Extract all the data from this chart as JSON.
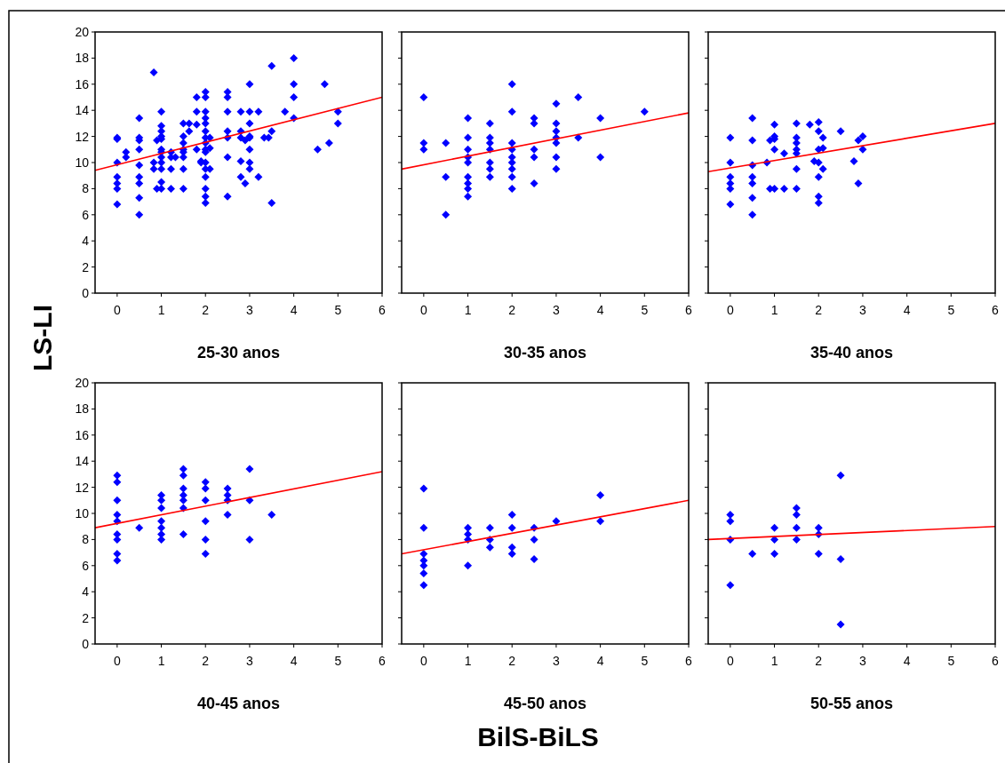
{
  "chart_data": [
    {
      "type": "scatter",
      "xlabel": "25-30 anos",
      "ylabel": "LS-LI",
      "xlim": [
        -0.5,
        6
      ],
      "xticks": [
        0,
        1,
        2,
        3,
        4,
        5,
        6
      ],
      "ylim": [
        0,
        20
      ],
      "yticks": [
        0,
        2,
        4,
        6,
        8,
        10,
        12,
        14,
        16,
        18,
        20
      ],
      "series": [
        {
          "color": "#0000ff",
          "marker": "diamond",
          "x": [
            0,
            0,
            0,
            0,
            0,
            0,
            0,
            0.2,
            0.2,
            0.5,
            0.5,
            0.5,
            0.5,
            0.5,
            0.5,
            0.5,
            0.5,
            0.5,
            0.83,
            0.83,
            0.83,
            0.9,
            0.9,
            1,
            1,
            1,
            1,
            1,
            1,
            1,
            1,
            1,
            1,
            1,
            1,
            1.22,
            1.22,
            1.22,
            1.22,
            1.32,
            1.5,
            1.5,
            1.5,
            1.5,
            1.5,
            1.5,
            1.5,
            1.5,
            1.63,
            1.63,
            1.8,
            1.8,
            1.8,
            1.8,
            1.9,
            1.9,
            2,
            2,
            2,
            2,
            2,
            2,
            2,
            2,
            2,
            2,
            2,
            2,
            2,
            2,
            2,
            2,
            2.1,
            2.1,
            2.1,
            2.5,
            2.5,
            2.5,
            2.5,
            2.5,
            2.5,
            2.5,
            2.8,
            2.8,
            2.8,
            2.8,
            2.8,
            2.9,
            2.9,
            3,
            3,
            3,
            3,
            3,
            3,
            3,
            3,
            3.2,
            3.2,
            3.33,
            3.43,
            3.5,
            3.5,
            3.5,
            3.8,
            4,
            4,
            4,
            4,
            4.54,
            4.7,
            4.8,
            5,
            5
          ],
          "values": [
            11.9,
            11.8,
            10,
            8.9,
            8.4,
            8,
            6.8,
            10.8,
            10.4,
            13.4,
            11.9,
            11.7,
            11,
            9.8,
            8.9,
            8.4,
            7.3,
            6,
            16.9,
            10,
            9.5,
            11.7,
            8,
            13.9,
            12.8,
            12.4,
            12,
            11.8,
            11,
            10.8,
            10.4,
            10,
            9.5,
            8.5,
            8,
            10.8,
            10.4,
            9.5,
            8,
            10.4,
            13,
            12,
            11.5,
            11,
            10.8,
            10.4,
            9.5,
            8,
            13,
            12.4,
            15,
            13.9,
            12.9,
            11,
            10.1,
            10,
            15.4,
            15,
            13.9,
            13.4,
            13,
            12.4,
            11.9,
            11.5,
            11,
            10.8,
            10,
            9.5,
            8.9,
            8,
            7.4,
            6.9,
            11.9,
            11.1,
            9.5,
            15.4,
            15,
            13.9,
            12.4,
            11.9,
            10.4,
            7.4,
            13.9,
            12.4,
            11.9,
            10.1,
            8.9,
            11.7,
            8.4,
            16,
            13.9,
            13,
            12,
            11.9,
            11,
            10,
            9.5,
            13.9,
            8.9,
            11.9,
            11.9,
            17.4,
            12.4,
            6.9,
            13.9,
            18,
            16,
            15,
            13.4,
            11,
            16,
            11.5,
            13.9,
            13
          ]
        },
        {
          "type": "line",
          "color": "#ff0000",
          "marker": "none",
          "x": [
            -0.5,
            6
          ],
          "values": [
            9.4,
            15
          ]
        }
      ]
    },
    {
      "type": "scatter",
      "xlabel": "30-35 anos",
      "xlim": [
        -0.5,
        6
      ],
      "xticks": [
        0,
        1,
        2,
        3,
        4,
        5,
        6
      ],
      "ylim": [
        0,
        20
      ],
      "yticks": [
        0,
        2,
        4,
        6,
        8,
        10,
        12,
        14,
        16,
        18,
        20
      ],
      "tick_labels": "x",
      "series": [
        {
          "color": "#0000ff",
          "marker": "diamond",
          "x": [
            0,
            0,
            0,
            0.5,
            0.5,
            0.5,
            1,
            1,
            1,
            1,
            1,
            1,
            1,
            1,
            1,
            1.5,
            1.5,
            1.5,
            1.5,
            1.5,
            1.5,
            1.5,
            2,
            2,
            2,
            2,
            2,
            2,
            2,
            2,
            2,
            2.5,
            2.5,
            2.5,
            2.5,
            2.5,
            3,
            3,
            3,
            3,
            3,
            3,
            3,
            3.5,
            3.5,
            4,
            4,
            5
          ],
          "values": [
            15,
            11.5,
            11,
            11.5,
            8.9,
            6,
            13.4,
            11.9,
            11,
            10.4,
            10,
            8.9,
            8.4,
            8,
            7.4,
            13,
            11.9,
            11.5,
            11,
            10,
            9.5,
            8.9,
            16,
            13.9,
            11.5,
            11,
            10.4,
            10,
            9.5,
            8.9,
            8,
            13.4,
            13,
            11,
            10.4,
            8.4,
            14.5,
            13,
            12.4,
            11.9,
            11.5,
            10.4,
            9.5,
            15,
            11.9,
            13.4,
            10.4,
            13.9
          ]
        },
        {
          "type": "line",
          "color": "#ff0000",
          "marker": "none",
          "x": [
            -0.5,
            6
          ],
          "values": [
            9.5,
            13.8
          ]
        }
      ]
    },
    {
      "type": "scatter",
      "xlabel": "35-40 anos",
      "xlim": [
        -0.5,
        6
      ],
      "xticks": [
        0,
        1,
        2,
        3,
        4,
        5,
        6
      ],
      "ylim": [
        0,
        20
      ],
      "yticks": [
        0,
        2,
        4,
        6,
        8,
        10,
        12,
        14,
        16,
        18,
        20
      ],
      "tick_labels": "x",
      "series": [
        {
          "color": "#0000ff",
          "marker": "diamond",
          "x": [
            0,
            0,
            0,
            0,
            0,
            0,
            0.5,
            0.5,
            0.5,
            0.5,
            0.5,
            0.5,
            0.5,
            0.83,
            0.9,
            0.9,
            1,
            1,
            1,
            1,
            1,
            1.22,
            1.22,
            1.5,
            1.5,
            1.5,
            1.5,
            1.5,
            1.5,
            1.5,
            1.8,
            1.9,
            2,
            2,
            2,
            2,
            2,
            2,
            2,
            2.1,
            2.1,
            2.1,
            2.5,
            2.8,
            2.9,
            2.9,
            3,
            3
          ],
          "values": [
            11.9,
            10,
            8.9,
            8.4,
            8,
            6.8,
            13.4,
            11.7,
            9.8,
            8.9,
            8.4,
            7.3,
            6,
            10,
            11.7,
            8,
            12.9,
            12,
            11.8,
            11,
            8,
            10.7,
            8,
            13,
            11.9,
            11.5,
            11,
            10.7,
            9.5,
            8,
            12.9,
            10.1,
            13.1,
            12.4,
            11,
            10,
            8.9,
            7.4,
            6.9,
            11.9,
            11.1,
            9.5,
            12.4,
            10.1,
            11.7,
            8.4,
            12,
            11
          ]
        },
        {
          "type": "line",
          "color": "#ff0000",
          "marker": "none",
          "x": [
            -0.5,
            6
          ],
          "values": [
            9.3,
            13
          ]
        }
      ]
    },
    {
      "type": "scatter",
      "xlabel": "40-45 anos",
      "xlim": [
        -0.5,
        6
      ],
      "xticks": [
        0,
        1,
        2,
        3,
        4,
        5,
        6
      ],
      "ylim": [
        0,
        20
      ],
      "yticks": [
        0,
        2,
        4,
        6,
        8,
        10,
        12,
        14,
        16,
        18,
        20
      ],
      "series": [
        {
          "color": "#0000ff",
          "marker": "diamond",
          "x": [
            0,
            0,
            0,
            0,
            0,
            0,
            0,
            0,
            0,
            0.5,
            1,
            1,
            1,
            1,
            1,
            1,
            1,
            1.5,
            1.5,
            1.5,
            1.5,
            1.5,
            1.5,
            1.5,
            2,
            2,
            2,
            2,
            2,
            2,
            2.5,
            2.5,
            2.5,
            2.5,
            3,
            3,
            3,
            3.5
          ],
          "values": [
            12.9,
            12.4,
            11,
            9.9,
            9.4,
            8.4,
            8,
            6.9,
            6.4,
            8.9,
            11.4,
            11,
            10.4,
            9.4,
            8.9,
            8.4,
            8,
            13.4,
            12.9,
            11.9,
            11.4,
            11,
            10.4,
            8.4,
            12.4,
            11.9,
            11,
            9.4,
            8,
            6.9,
            11.9,
            11.4,
            11,
            9.9,
            13.4,
            11,
            8,
            9.9
          ]
        },
        {
          "type": "line",
          "color": "#ff0000",
          "marker": "none",
          "x": [
            -0.5,
            6
          ],
          "values": [
            8.9,
            13.2
          ]
        }
      ]
    },
    {
      "type": "scatter",
      "xlabel": "45-50 anos",
      "annotations": [
        "BilS-BiLS"
      ],
      "xlim": [
        -0.5,
        6
      ],
      "xticks": [
        0,
        1,
        2,
        3,
        4,
        5,
        6
      ],
      "ylim": [
        0,
        20
      ],
      "yticks": [
        0,
        2,
        4,
        6,
        8,
        10,
        12,
        14,
        16,
        18,
        20
      ],
      "tick_labels": "x",
      "series": [
        {
          "color": "#0000ff",
          "marker": "diamond",
          "x": [
            0,
            0,
            0,
            0,
            0,
            0,
            0,
            1,
            1,
            1,
            1,
            1.5,
            1.5,
            1.5,
            2,
            2,
            2,
            2,
            2.5,
            2.5,
            2.5,
            3,
            4,
            4
          ],
          "values": [
            11.9,
            8.9,
            6.9,
            6.4,
            6,
            5.4,
            4.5,
            8.9,
            8.4,
            8,
            6,
            8.9,
            8,
            7.4,
            9.9,
            8.9,
            7.4,
            6.9,
            8.9,
            8,
            6.5,
            9.4,
            11.4,
            9.4
          ]
        },
        {
          "type": "line",
          "color": "#ff0000",
          "marker": "none",
          "x": [
            -0.5,
            6
          ],
          "values": [
            6.9,
            11
          ]
        }
      ]
    },
    {
      "type": "scatter",
      "xlabel": "50-55 anos",
      "xlim": [
        -0.5,
        6
      ],
      "xticks": [
        0,
        1,
        2,
        3,
        4,
        5,
        6
      ],
      "ylim": [
        0,
        20
      ],
      "yticks": [
        0,
        2,
        4,
        6,
        8,
        10,
        12,
        14,
        16,
        18,
        20
      ],
      "tick_labels": "x",
      "series": [
        {
          "color": "#0000ff",
          "marker": "diamond",
          "x": [
            0,
            0,
            0,
            0,
            0.5,
            1,
            1,
            1,
            1.5,
            1.5,
            1.5,
            1.5,
            2,
            2,
            2,
            2.5,
            2.5,
            2.5
          ],
          "values": [
            9.9,
            9.4,
            8,
            4.5,
            6.9,
            8.9,
            8,
            6.9,
            10.4,
            9.9,
            8.9,
            8,
            8.9,
            8.4,
            6.9,
            12.9,
            6.5,
            1.5
          ]
        },
        {
          "type": "line",
          "color": "#ff0000",
          "marker": "none",
          "x": [
            -0.5,
            6
          ],
          "values": [
            8,
            9
          ]
        }
      ]
    }
  ]
}
